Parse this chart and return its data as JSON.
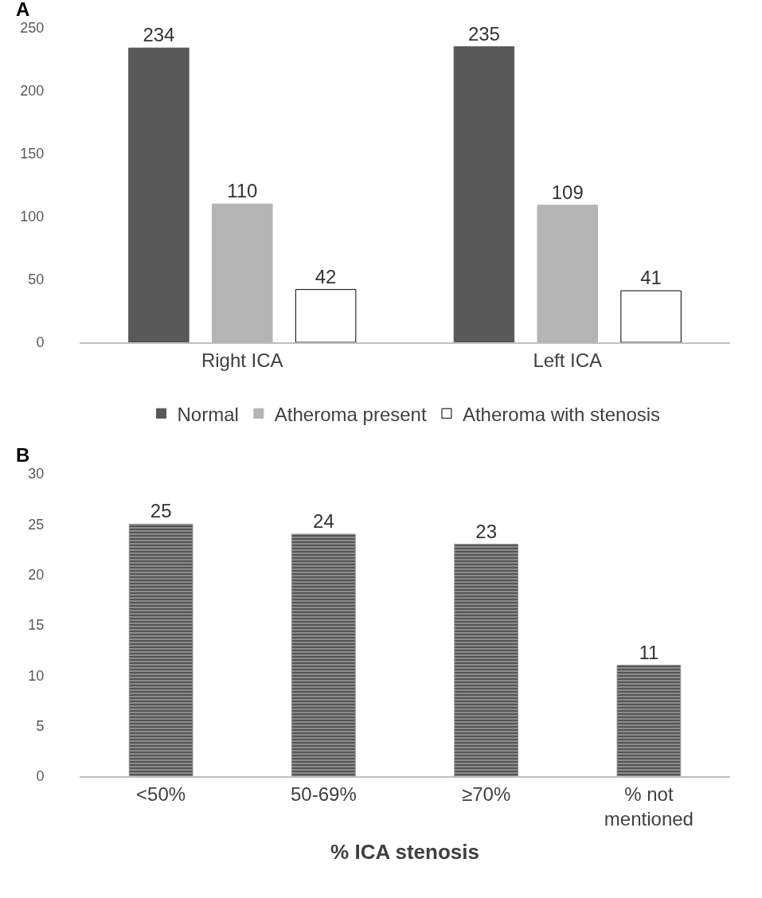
{
  "chart_data": [
    {
      "type": "bar",
      "title": "A",
      "categories": [
        "Right ICA",
        "Left ICA"
      ],
      "series": [
        {
          "name": "Normal",
          "color": "#595959",
          "values": [
            234,
            235
          ]
        },
        {
          "name": "Atheroma present",
          "color": "#b4b4b4",
          "values": [
            110,
            109
          ]
        },
        {
          "name": "Atheroma with stenosis",
          "color": "#ffffff",
          "values": [
            42,
            41
          ]
        }
      ],
      "ylim": [
        0,
        250
      ],
      "yticks": [
        0,
        50,
        100,
        150,
        200,
        250
      ],
      "grid": false,
      "legend": "bottom",
      "data_labels": true
    },
    {
      "type": "bar",
      "title": "B",
      "xlabel": "% ICA stenosis",
      "categories": [
        "<50%",
        "50-69%",
        "≥70%",
        "% not mentioned"
      ],
      "values": [
        25,
        24,
        23,
        11
      ],
      "color": "#8c8c8c",
      "ylim": [
        0,
        30
      ],
      "yticks": [
        0,
        5,
        10,
        15,
        20,
        25,
        30
      ],
      "grid": false,
      "legend": false,
      "data_labels": true
    }
  ]
}
